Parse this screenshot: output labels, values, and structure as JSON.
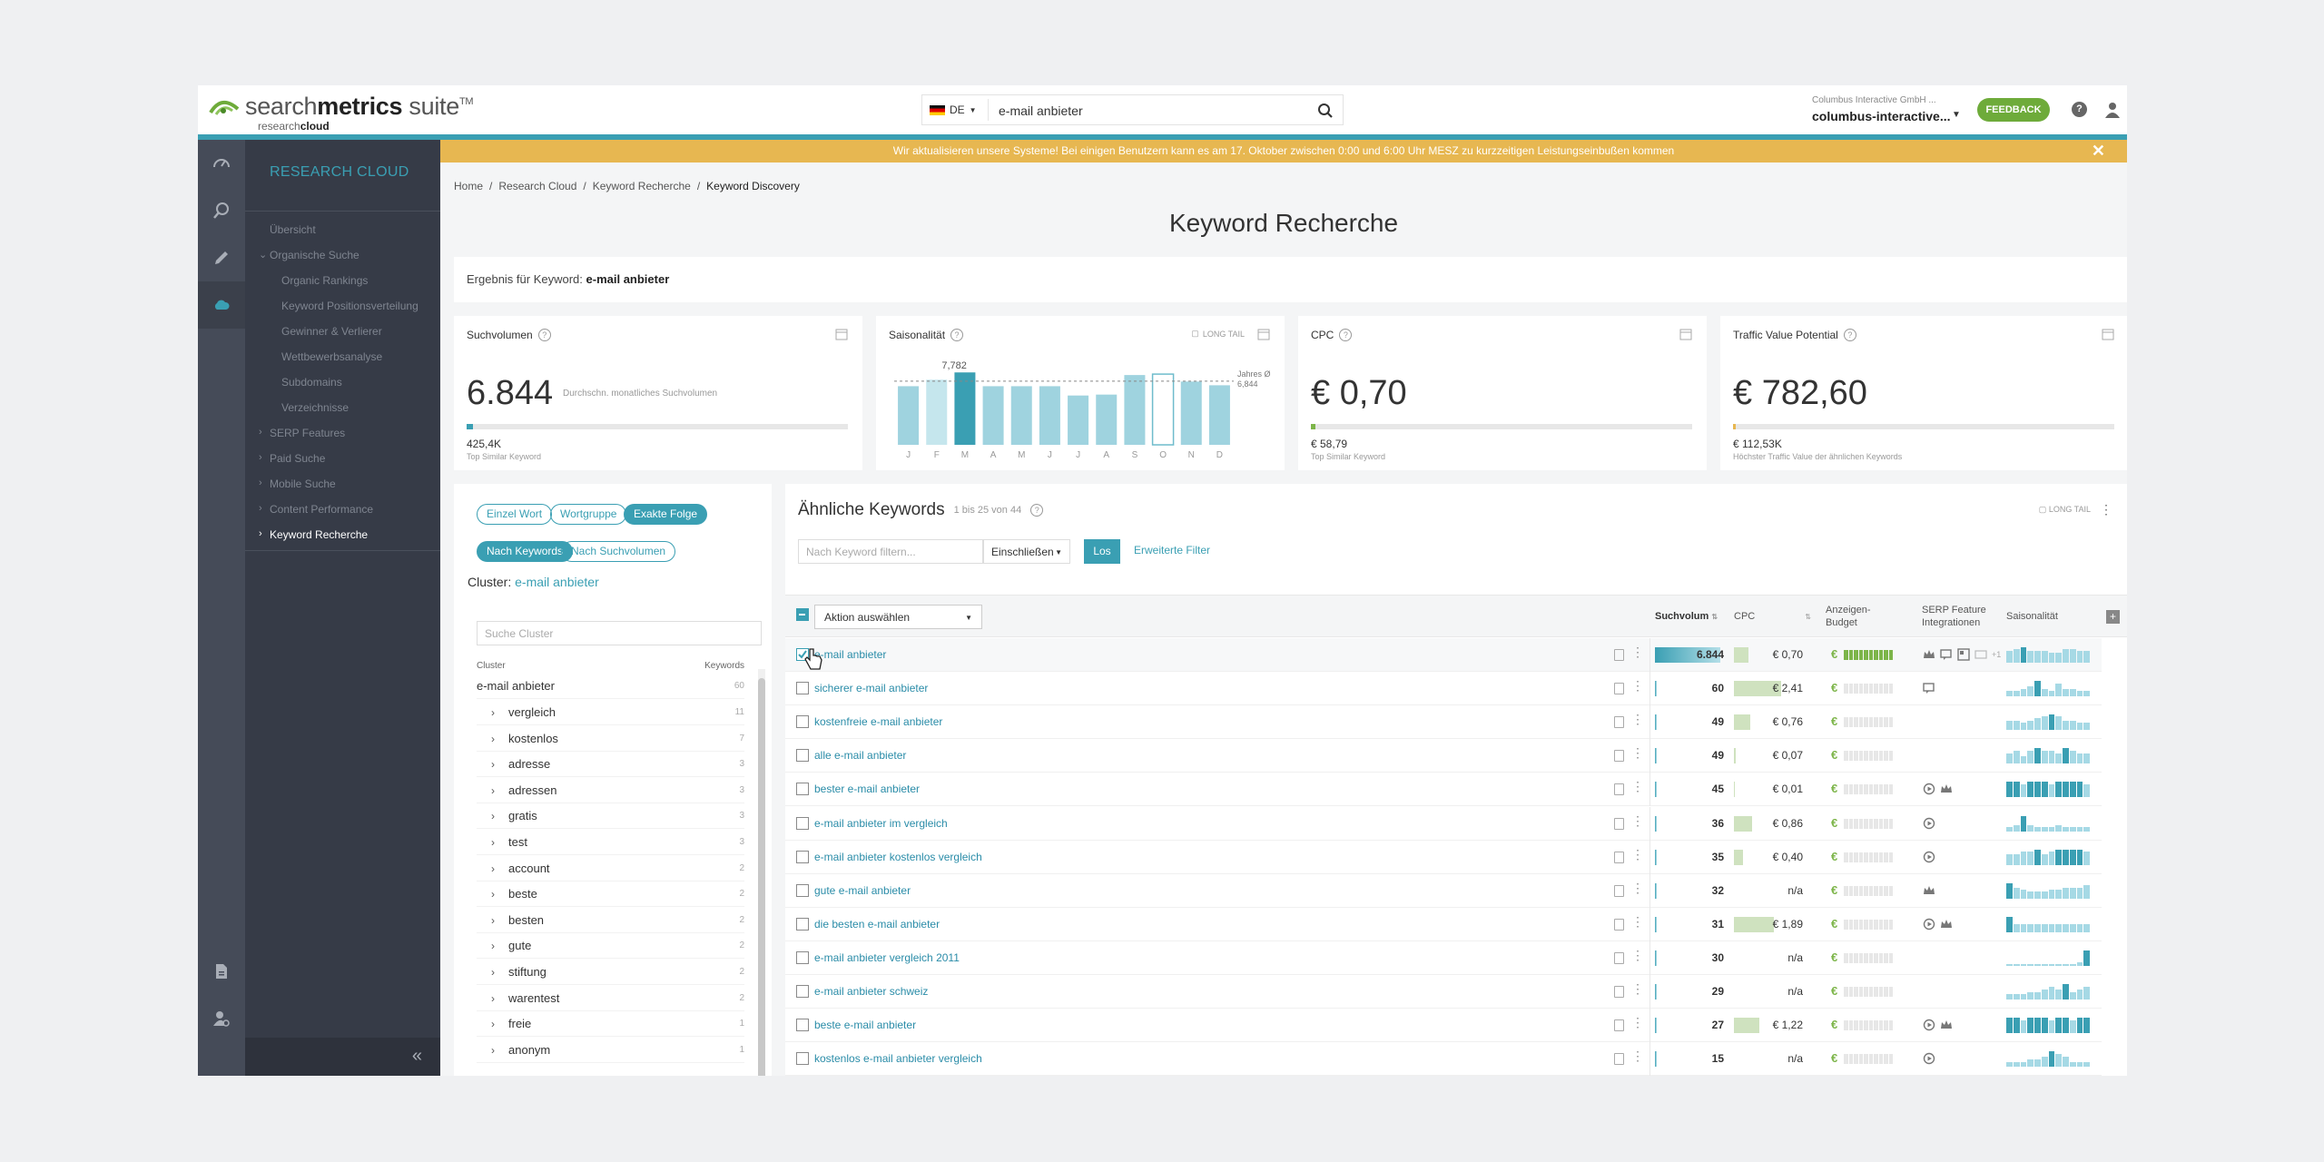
{
  "header": {
    "logo_light": "search",
    "logo_bold": "metrics",
    "logo_suite": " suite",
    "logo_tm": "TM",
    "logo_sub_light": "research",
    "logo_sub_bold": "cloud",
    "lang": "DE",
    "query": "e-mail anbieter",
    "account_top": "Columbus Interactive GmbH ...",
    "account_name": "columbus-interactive...",
    "feedback": "FEEDBACK",
    "help": "?"
  },
  "colors": {
    "accent": "#3a9fb3",
    "banner": "#e7b751",
    "nav_bg": "#363b47",
    "green": "#6eab3a"
  },
  "nav": {
    "title": "RESEARCH CLOUD",
    "items": [
      {
        "label": "Übersicht",
        "level": "top",
        "chev": ""
      },
      {
        "label": "Organische Suche",
        "level": "top",
        "chev": "⌄"
      },
      {
        "label": "Organic Rankings",
        "level": "sub",
        "chev": ""
      },
      {
        "label": "Keyword Positionsverteilung",
        "level": "sub",
        "chev": ""
      },
      {
        "label": "Gewinner & Verlierer",
        "level": "sub",
        "chev": ""
      },
      {
        "label": "Wettbewerbsanalyse",
        "level": "sub",
        "chev": ""
      },
      {
        "label": "Subdomains",
        "level": "sub",
        "chev": ""
      },
      {
        "label": "Verzeichnisse",
        "level": "sub",
        "chev": ""
      },
      {
        "label": "SERP Features",
        "level": "top",
        "chev": "›"
      },
      {
        "label": "Paid Suche",
        "level": "top",
        "chev": "›"
      },
      {
        "label": "Mobile Suche",
        "level": "top",
        "chev": "›"
      },
      {
        "label": "Content Performance",
        "level": "top",
        "chev": "›"
      },
      {
        "label": "Keyword Recherche",
        "level": "top",
        "chev": "›",
        "active": true
      }
    ],
    "collapse": "«"
  },
  "banner": {
    "text": "Wir aktualisieren unsere Systeme! Bei einigen Benutzern kann es am 17. Oktober zwischen 0:00 und 6:00 Uhr MESZ zu kurzzeitigen Leistungseinbußen kommen",
    "close": "✕"
  },
  "breadcrumb": [
    "Home",
    "Research Cloud",
    "Keyword Recherche",
    "Keyword Discovery"
  ],
  "page_title": "Keyword Recherche",
  "result": {
    "label": "Ergebnis für Keyword: ",
    "keyword": "e-mail anbieter"
  },
  "cards": {
    "volume": {
      "title": "Suchvolumen",
      "value": "6.844",
      "note": "Durchschn. monatliches Suchvolumen",
      "fill": 0.016,
      "sub": "425,4K",
      "sub_label": "Top Similar Keyword"
    },
    "season": {
      "title": "Saisonalität",
      "long_tail": "LONG TAIL",
      "peak_label": "7,782",
      "avg_label": "Jahres Ø",
      "avg_value": "6,844"
    },
    "cpc": {
      "title": "CPC",
      "value": "€ 0,70",
      "fill": 0.012,
      "sub": "€ 58,79",
      "sub_label": "Top Similar Keyword"
    },
    "tvp": {
      "title": "Traffic Value Potential",
      "value": "€ 782,60",
      "fill": 0.007,
      "sub": "€ 112,53K",
      "sub_label": "Höchster Traffic Value der ähnlichen Keywords"
    }
  },
  "chart_data": {
    "type": "bar",
    "categories": [
      "J",
      "F",
      "M",
      "A",
      "M",
      "J",
      "J",
      "A",
      "S",
      "O",
      "N",
      "D"
    ],
    "values": [
      6300,
      7000,
      7782,
      6300,
      6300,
      6300,
      5300,
      5400,
      7500,
      7600,
      6800,
      6400
    ],
    "highlight_index": 2,
    "outlined_index": 9,
    "average": 6844,
    "ylim": [
      0,
      8000
    ]
  },
  "cluster": {
    "pills1": [
      "Einzel Wort",
      "Wortgruppe",
      "Exakte Folge"
    ],
    "pills2": [
      "Nach Keywords",
      "Nach Suchvolumen"
    ],
    "head_label": "Cluster: ",
    "head_value": "e-mail anbieter",
    "search_placeholder": "Suche Cluster",
    "col_cluster": "Cluster",
    "col_keywords": "Keywords",
    "root": {
      "label": "e-mail anbieter",
      "count": "60"
    },
    "rows": [
      {
        "label": "vergleich",
        "count": "11"
      },
      {
        "label": "kostenlos",
        "count": "7"
      },
      {
        "label": "adresse",
        "count": "3"
      },
      {
        "label": "adressen",
        "count": "3"
      },
      {
        "label": "gratis",
        "count": "3"
      },
      {
        "label": "test",
        "count": "3"
      },
      {
        "label": "account",
        "count": "2"
      },
      {
        "label": "beste",
        "count": "2"
      },
      {
        "label": "besten",
        "count": "2"
      },
      {
        "label": "gute",
        "count": "2"
      },
      {
        "label": "stiftung",
        "count": "2"
      },
      {
        "label": "warentest",
        "count": "2"
      },
      {
        "label": "freie",
        "count": "1"
      },
      {
        "label": "anonym",
        "count": "1"
      }
    ]
  },
  "similar": {
    "title": "Ähnliche Keywords",
    "range": "1 bis 25 von 44",
    "filter_placeholder": "Nach Keyword filtern...",
    "include": "Einschließen",
    "go": "Los",
    "advanced": "Erweiterte Filter",
    "long_tail": "LONG TAIL",
    "action": "Aktion auswählen",
    "cols": {
      "volume": "Suchvolum",
      "cpc": "CPC",
      "budget": "Anzeigen-\nBudget",
      "serp": "SERP Feature\nIntegrationen",
      "season": "Saisonalität"
    },
    "rows": [
      {
        "kw": "e-mail anbieter",
        "sv": "6.844",
        "svf": 0.9,
        "cpc": "€ 0,70",
        "cpcf": 0.2,
        "bud": 10,
        "serp": [
          "crown",
          "chat",
          "img",
          "snip"
        ],
        "more": "+1",
        "sea": [
          6,
          7,
          8,
          6,
          6,
          6,
          5,
          5,
          7,
          7,
          6,
          6
        ],
        "checked": true
      },
      {
        "kw": "sicherer e-mail anbieter",
        "sv": "60",
        "svf": 0.02,
        "cpc": "€ 2,41",
        "cpcf": 0.65,
        "bud": 0,
        "serp": [
          "chat"
        ],
        "more": "",
        "sea": [
          2,
          2,
          3,
          4,
          6,
          3,
          2,
          5,
          3,
          3,
          2,
          2
        ]
      },
      {
        "kw": "kostenfreie e-mail anbieter",
        "sv": "49",
        "svf": 0.02,
        "cpc": "€ 0,76",
        "cpcf": 0.22,
        "bud": 0,
        "serp": [],
        "more": "",
        "sea": [
          5,
          5,
          4,
          5,
          6,
          7,
          8,
          7,
          5,
          5,
          4,
          4
        ]
      },
      {
        "kw": "alle e-mail anbieter",
        "sv": "49",
        "svf": 0.02,
        "cpc": "€ 0,07",
        "cpcf": 0.03,
        "bud": 0,
        "serp": [],
        "more": "",
        "sea": [
          4,
          5,
          3,
          5,
          6,
          5,
          5,
          4,
          6,
          5,
          4,
          4
        ]
      },
      {
        "kw": "bester e-mail anbieter",
        "sv": "45",
        "svf": 0.02,
        "cpc": "€ 0,01",
        "cpcf": 0.01,
        "bud": 0,
        "serp": [
          "play",
          "crown"
        ],
        "more": "",
        "sea": [
          6,
          6,
          5,
          6,
          6,
          6,
          5,
          6,
          6,
          6,
          6,
          5
        ]
      },
      {
        "kw": "e-mail anbieter im vergleich",
        "sv": "36",
        "svf": 0.02,
        "cpc": "€ 0,86",
        "cpcf": 0.25,
        "bud": 0,
        "serp": [
          "play"
        ],
        "more": "",
        "sea": [
          2,
          3,
          8,
          3,
          2,
          2,
          2,
          3,
          2,
          2,
          2,
          2
        ]
      },
      {
        "kw": "e-mail anbieter kostenlos vergleich",
        "sv": "35",
        "svf": 0.02,
        "cpc": "€ 0,40",
        "cpcf": 0.12,
        "bud": 0,
        "serp": [
          "play"
        ],
        "more": "",
        "sea": [
          4,
          4,
          5,
          5,
          6,
          4,
          5,
          6,
          6,
          6,
          6,
          5
        ]
      },
      {
        "kw": "gute e-mail anbieter",
        "sv": "32",
        "svf": 0.02,
        "cpc": "n/a",
        "cpcf": 0,
        "bud": 0,
        "serp": [
          "crown"
        ],
        "more": "",
        "sea": [
          7,
          5,
          4,
          3,
          3,
          3,
          4,
          4,
          5,
          5,
          5,
          6
        ]
      },
      {
        "kw": "die besten e-mail anbieter",
        "sv": "31",
        "svf": 0.02,
        "cpc": "€ 1,89",
        "cpcf": 0.55,
        "bud": 0,
        "serp": [
          "play",
          "crown"
        ],
        "more": "",
        "sea": [
          8,
          4,
          4,
          4,
          4,
          4,
          4,
          4,
          4,
          4,
          4,
          4
        ]
      },
      {
        "kw": "e-mail anbieter vergleich 2011",
        "sv": "30",
        "svf": 0.02,
        "cpc": "n/a",
        "cpcf": 0,
        "bud": 0,
        "serp": [],
        "more": "",
        "sea": [
          1,
          1,
          1,
          1,
          1,
          1,
          1,
          1,
          1,
          1,
          2,
          8
        ]
      },
      {
        "kw": "e-mail anbieter schweiz",
        "sv": "29",
        "svf": 0.02,
        "cpc": "n/a",
        "cpcf": 0,
        "bud": 0,
        "serp": [],
        "more": "",
        "sea": [
          2,
          2,
          2,
          3,
          3,
          4,
          5,
          4,
          6,
          3,
          4,
          5
        ]
      },
      {
        "kw": "beste e-mail anbieter",
        "sv": "27",
        "svf": 0.02,
        "cpc": "€ 1,22",
        "cpcf": 0.35,
        "bud": 0,
        "serp": [
          "play",
          "crown"
        ],
        "more": "",
        "sea": [
          6,
          6,
          5,
          6,
          6,
          6,
          5,
          6,
          6,
          5,
          6,
          6
        ]
      },
      {
        "kw": "kostenlos e-mail anbieter vergleich",
        "sv": "15",
        "svf": 0.01,
        "cpc": "n/a",
        "cpcf": 0,
        "bud": 0,
        "serp": [
          "play"
        ],
        "more": "",
        "sea": [
          2,
          2,
          2,
          3,
          3,
          4,
          6,
          5,
          4,
          2,
          2,
          2
        ]
      }
    ]
  }
}
